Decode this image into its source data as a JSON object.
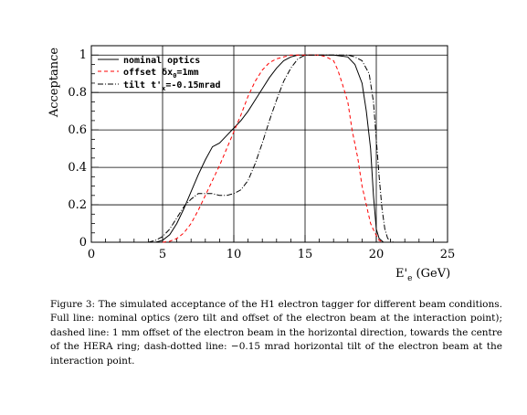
{
  "chart_data": {
    "type": "line",
    "xlabel_main": "E'",
    "xlabel_sub": "e",
    "xlabel_unit": " (GeV)",
    "ylabel": "Acceptance",
    "xlim": [
      0,
      25
    ],
    "ylim": [
      0,
      1.05
    ],
    "x_ticks": [
      0,
      5,
      10,
      15,
      20,
      25
    ],
    "x_tick_labels": [
      "0",
      "5",
      "10",
      "15",
      "20",
      "25"
    ],
    "y_ticks": [
      0,
      0.2,
      0.4,
      0.6,
      0.8,
      1
    ],
    "y_tick_labels": [
      "0",
      "0.2",
      "0.4",
      "0.6",
      "0.8",
      "1"
    ],
    "grid": true,
    "legend_position": "top-left",
    "series": [
      {
        "name": "nominal optics",
        "color": "#000000",
        "style": "solid",
        "points": [
          [
            4.5,
            0
          ],
          [
            5,
            0.01
          ],
          [
            5.5,
            0.04
          ],
          [
            6,
            0.1
          ],
          [
            6.5,
            0.18
          ],
          [
            7,
            0.27
          ],
          [
            7.5,
            0.36
          ],
          [
            8,
            0.44
          ],
          [
            8.5,
            0.51
          ],
          [
            9,
            0.53
          ],
          [
            9.5,
            0.57
          ],
          [
            10,
            0.61
          ],
          [
            10.5,
            0.65
          ],
          [
            11,
            0.7
          ],
          [
            11.5,
            0.76
          ],
          [
            12,
            0.82
          ],
          [
            12.5,
            0.88
          ],
          [
            13,
            0.93
          ],
          [
            13.5,
            0.97
          ],
          [
            14,
            0.99
          ],
          [
            14.5,
            1
          ],
          [
            15,
            1
          ],
          [
            16,
            1
          ],
          [
            17,
            1
          ],
          [
            18,
            0.99
          ],
          [
            18.5,
            0.95
          ],
          [
            19,
            0.85
          ],
          [
            19.3,
            0.7
          ],
          [
            19.6,
            0.5
          ],
          [
            19.8,
            0.25
          ],
          [
            20,
            0.07
          ],
          [
            20.2,
            0.02
          ],
          [
            20.5,
            0
          ]
        ]
      },
      {
        "name": "offset δx₀=1mm",
        "color": "#ff0000",
        "style": "dashed",
        "points": [
          [
            5,
            0
          ],
          [
            5.5,
            0.005
          ],
          [
            6,
            0.02
          ],
          [
            6.5,
            0.05
          ],
          [
            7,
            0.1
          ],
          [
            7.5,
            0.17
          ],
          [
            8,
            0.25
          ],
          [
            8.5,
            0.33
          ],
          [
            9,
            0.41
          ],
          [
            9.5,
            0.5
          ],
          [
            10,
            0.59
          ],
          [
            10.5,
            0.68
          ],
          [
            11,
            0.78
          ],
          [
            11.5,
            0.86
          ],
          [
            12,
            0.92
          ],
          [
            12.5,
            0.96
          ],
          [
            13,
            0.98
          ],
          [
            13.5,
            0.99
          ],
          [
            14,
            1
          ],
          [
            15,
            1
          ],
          [
            16,
            1
          ],
          [
            16.5,
            0.99
          ],
          [
            17,
            0.97
          ],
          [
            17.3,
            0.92
          ],
          [
            17.6,
            0.85
          ],
          [
            18,
            0.75
          ],
          [
            18.3,
            0.6
          ],
          [
            18.7,
            0.45
          ],
          [
            19,
            0.3
          ],
          [
            19.3,
            0.2
          ],
          [
            19.6,
            0.1
          ],
          [
            19.9,
            0.05
          ],
          [
            20.2,
            0.01
          ],
          [
            20.5,
            0
          ]
        ]
      },
      {
        "name": "tilt t'x=-0.15mrad",
        "color": "#000000",
        "style": "dashdot",
        "points": [
          [
            4,
            0
          ],
          [
            4.5,
            0.01
          ],
          [
            5,
            0.03
          ],
          [
            5.5,
            0.07
          ],
          [
            6,
            0.13
          ],
          [
            6.5,
            0.19
          ],
          [
            7,
            0.23
          ],
          [
            7.5,
            0.26
          ],
          [
            8,
            0.26
          ],
          [
            8.5,
            0.26
          ],
          [
            9,
            0.25
          ],
          [
            9.5,
            0.25
          ],
          [
            10,
            0.26
          ],
          [
            10.5,
            0.28
          ],
          [
            11,
            0.33
          ],
          [
            11.5,
            0.42
          ],
          [
            12,
            0.53
          ],
          [
            12.5,
            0.65
          ],
          [
            13,
            0.76
          ],
          [
            13.5,
            0.86
          ],
          [
            14,
            0.93
          ],
          [
            14.5,
            0.98
          ],
          [
            15,
            1
          ],
          [
            16,
            1
          ],
          [
            17,
            1
          ],
          [
            18,
            1
          ],
          [
            18.5,
            0.99
          ],
          [
            19,
            0.97
          ],
          [
            19.5,
            0.9
          ],
          [
            19.8,
            0.75
          ],
          [
            20,
            0.55
          ],
          [
            20.2,
            0.35
          ],
          [
            20.4,
            0.18
          ],
          [
            20.6,
            0.07
          ],
          [
            20.8,
            0.02
          ],
          [
            21.2,
            0
          ]
        ]
      }
    ]
  },
  "legend": {
    "nominal": "nominal optics",
    "offset_prefix": "offset ",
    "offset_delta": "δx",
    "offset_sub": "0",
    "offset_suffix": "=1mm",
    "tilt_prefix": "tilt ",
    "tilt_t": "t'",
    "tilt_sub": "x",
    "tilt_suffix": "=-0.15mrad"
  },
  "caption": {
    "text": "Figure 3:  The simulated acceptance of the H1 electron tagger for different beam conditions.  Full line: nominal optics (zero tilt and offset of the electron beam at the interaction point); dashed line: 1 mm offset of the electron beam in the horizontal direction, towards the centre of the HERA ring; dash-dotted line: −0.15 mrad horizontal tilt of the electron beam at the interaction point."
  }
}
